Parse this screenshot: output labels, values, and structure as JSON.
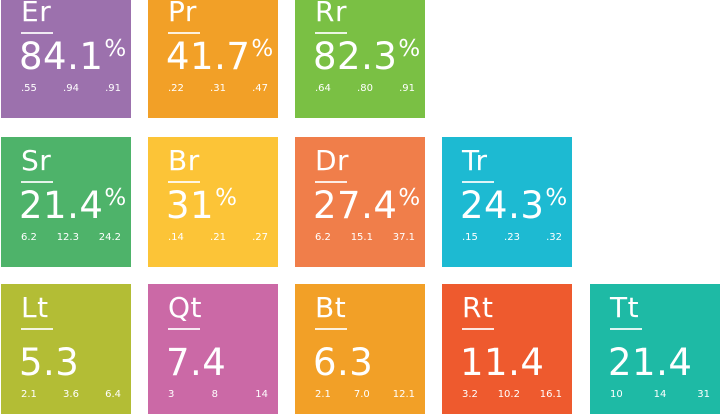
{
  "tiles": [
    {
      "symbol": "Er",
      "value": "84.1",
      "unit": "%",
      "subs": [
        ".55",
        ".94",
        ".91"
      ],
      "color": "#9c71ad"
    },
    {
      "symbol": "Pr",
      "value": "41.7",
      "unit": "%",
      "subs": [
        ".22",
        ".31",
        ".47"
      ],
      "color": "#f2a027"
    },
    {
      "symbol": "Rr",
      "value": "82.3",
      "unit": "%",
      "subs": [
        ".64",
        ".80",
        ".91"
      ],
      "color": "#7ac044"
    },
    {
      "symbol": "Sr",
      "value": "21.4",
      "unit": "%",
      "subs": [
        "6.2",
        "12.3",
        "24.2"
      ],
      "color": "#4eb36a"
    },
    {
      "symbol": "Br",
      "value": "31",
      "unit": "%",
      "subs": [
        ".14",
        ".21",
        ".27"
      ],
      "color": "#fcc437"
    },
    {
      "symbol": "Dr",
      "value": "27.4",
      "unit": "%",
      "subs": [
        "6.2",
        "15.1",
        "37.1"
      ],
      "color": "#f07e4a"
    },
    {
      "symbol": "Tr",
      "value": "24.3",
      "unit": "%",
      "subs": [
        ".15",
        ".23",
        ".32"
      ],
      "color": "#1dbad2"
    },
    {
      "symbol": "Lt",
      "value": "5.3",
      "unit": "",
      "subs": [
        "2.1",
        "3.6",
        "6.4"
      ],
      "color": "#b3bd35"
    },
    {
      "symbol": "Qt",
      "value": "7.4",
      "unit": "",
      "subs": [
        "3",
        "8",
        "14"
      ],
      "color": "#cb69a6"
    },
    {
      "symbol": "Bt",
      "value": "6.3",
      "unit": "",
      "subs": [
        "2.1",
        "7.0",
        "12.1"
      ],
      "color": "#f2a027"
    },
    {
      "symbol": "Rt",
      "value": "11.4",
      "unit": "",
      "subs": [
        "3.2",
        "10.2",
        "16.1"
      ],
      "color": "#ee5a2e"
    },
    {
      "symbol": "Tt",
      "value": "21.4",
      "unit": "",
      "subs": [
        "10",
        "14",
        "31"
      ],
      "color": "#1ebaa5"
    }
  ]
}
